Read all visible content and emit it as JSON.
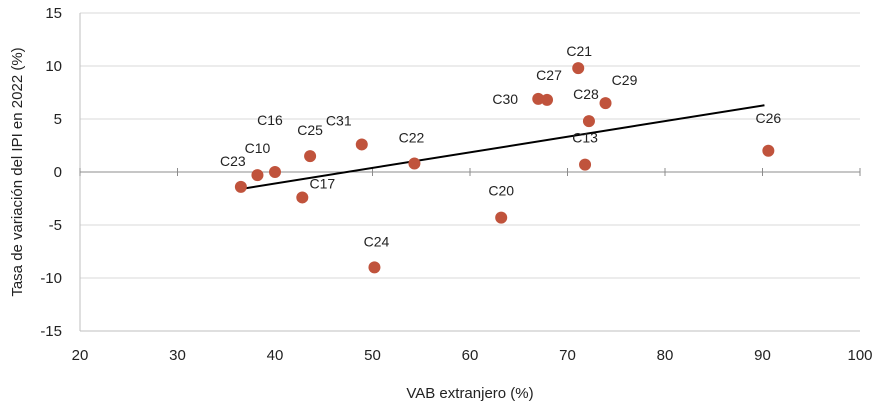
{
  "chart_data": {
    "type": "scatter",
    "title": "",
    "xlabel": "VAB extranjero (%)",
    "ylabel": "Tasa de variación del IPI en 2022 (%)",
    "xlim": [
      20,
      100
    ],
    "ylim": [
      -15,
      15
    ],
    "xticks": [
      20,
      30,
      40,
      50,
      60,
      70,
      80,
      90,
      100
    ],
    "yticks": [
      -15,
      -10,
      -5,
      0,
      5,
      10,
      15
    ],
    "grid": "horizontal",
    "colors": {
      "point": "#C0533C",
      "trend": "#000000",
      "grid": "#d9d9d9"
    },
    "points": [
      {
        "label": "C23",
        "x": 36.5,
        "y": -1.4
      },
      {
        "label": "C10",
        "x": 38.2,
        "y": -0.3
      },
      {
        "label": "C16",
        "x": 40.0,
        "y": 0.0
      },
      {
        "label": "C17",
        "x": 42.8,
        "y": -2.4
      },
      {
        "label": "C25",
        "x": 43.6,
        "y": 1.5
      },
      {
        "label": "C31",
        "x": 48.9,
        "y": 2.6
      },
      {
        "label": "C24",
        "x": 50.2,
        "y": -9.0
      },
      {
        "label": "C22",
        "x": 54.3,
        "y": 0.8
      },
      {
        "label": "C20",
        "x": 63.2,
        "y": -4.3
      },
      {
        "label": "C30",
        "x": 67.0,
        "y": 6.9
      },
      {
        "label": "C27",
        "x": 67.9,
        "y": 6.8
      },
      {
        "label": "C21",
        "x": 71.1,
        "y": 9.8
      },
      {
        "label": "C13",
        "x": 71.8,
        "y": 0.7
      },
      {
        "label": "C28",
        "x": 72.2,
        "y": 4.8
      },
      {
        "label": "C29",
        "x": 73.9,
        "y": 6.5
      },
      {
        "label": "C26",
        "x": 90.6,
        "y": 2.0
      }
    ],
    "trendline": {
      "x": [
        36.5,
        90.2
      ],
      "y": [
        -1.6,
        6.3
      ]
    }
  }
}
